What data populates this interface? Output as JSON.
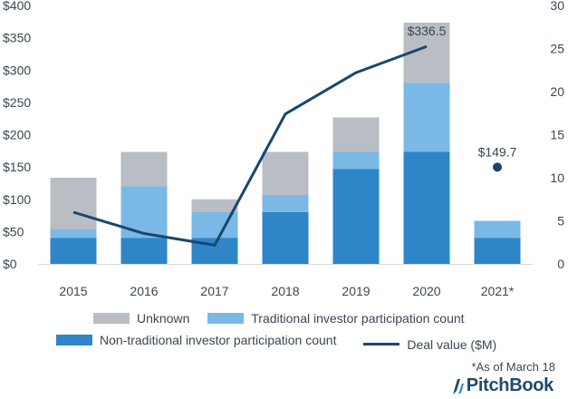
{
  "chart_data": {
    "type": "bar",
    "categories": [
      "2015",
      "2016",
      "2017",
      "2018",
      "2019",
      "2020",
      "2021*"
    ],
    "series": [
      {
        "name": "Non-traditional investor participation count",
        "values": [
          3,
          3,
          3,
          6,
          11,
          13,
          3
        ],
        "color": "#2e86c8"
      },
      {
        "name": "Traditional investor participation count",
        "values": [
          1,
          6,
          3,
          2,
          2,
          8,
          2
        ],
        "color": "#7ab9e6"
      },
      {
        "name": "Unknown",
        "values": [
          6,
          4,
          1.5,
          5,
          4,
          7,
          0
        ],
        "color": "#b9bec4"
      }
    ],
    "line": {
      "name": "Deal value ($M)",
      "values": [
        80,
        47,
        29,
        232,
        296,
        336.5,
        149.7
      ],
      "color": "#17476f",
      "connected": [
        true,
        true,
        true,
        true,
        true,
        true,
        false
      ]
    },
    "data_labels": [
      {
        "category": "2020",
        "text": "$336.5"
      },
      {
        "category": "2021*",
        "text": "$149.7"
      }
    ],
    "y_left": {
      "ylim": [
        0,
        400
      ],
      "ticks": [
        "$0",
        "$50",
        "$100",
        "$150",
        "$200",
        "$250",
        "$300",
        "$350",
        "$400"
      ]
    },
    "y_right": {
      "ylim": [
        0,
        30
      ],
      "ticks": [
        "0",
        "5",
        "10",
        "15",
        "20",
        "25",
        "30"
      ]
    },
    "legend": {
      "row1": [
        "Unknown",
        "Traditional investor participation count"
      ],
      "row2": [
        "Non-traditional investor participation count",
        "Deal value ($M)"
      ],
      "placement": "bottom"
    },
    "grid": false
  },
  "footnote": "*As of March 18",
  "brand": "PitchBook"
}
